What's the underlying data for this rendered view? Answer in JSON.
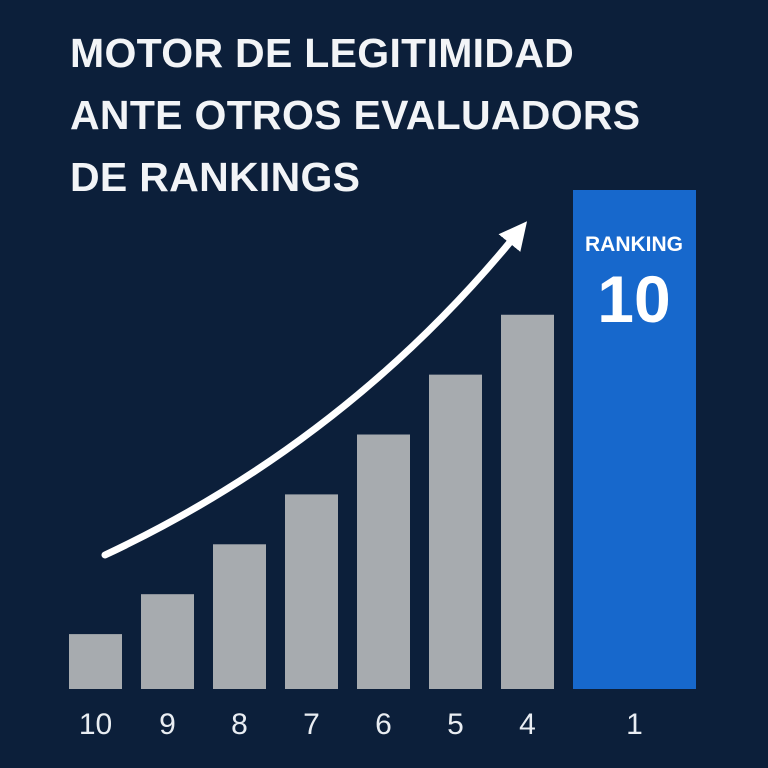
{
  "title_lines": [
    "MOTOR DE LEGITIMIDAD",
    "ANTE OTROS EVALUADORS",
    "DE RANKINGS"
  ],
  "colors": {
    "background": "#0c1f3a",
    "bar": "#a7abaf",
    "highlight": "#1768cc",
    "text": "#f2f4f7",
    "arrow": "#ffffff"
  },
  "chart_data": {
    "type": "bar",
    "title": "MOTOR DE LEGITIMIDAD ANTE OTROS EVALUADORS DE RANKINGS",
    "categories": [
      "10",
      "9",
      "8",
      "7",
      "6",
      "5",
      "4",
      "1"
    ],
    "values": [
      1.1,
      1.9,
      2.9,
      3.9,
      5.1,
      6.3,
      7.5,
      10
    ],
    "ylim": [
      0,
      10
    ],
    "xlabel": "",
    "ylabel": "",
    "highlight": {
      "index": 7,
      "label": "RANKING",
      "value": "10"
    },
    "annotation": "upward-trend-arrow"
  }
}
